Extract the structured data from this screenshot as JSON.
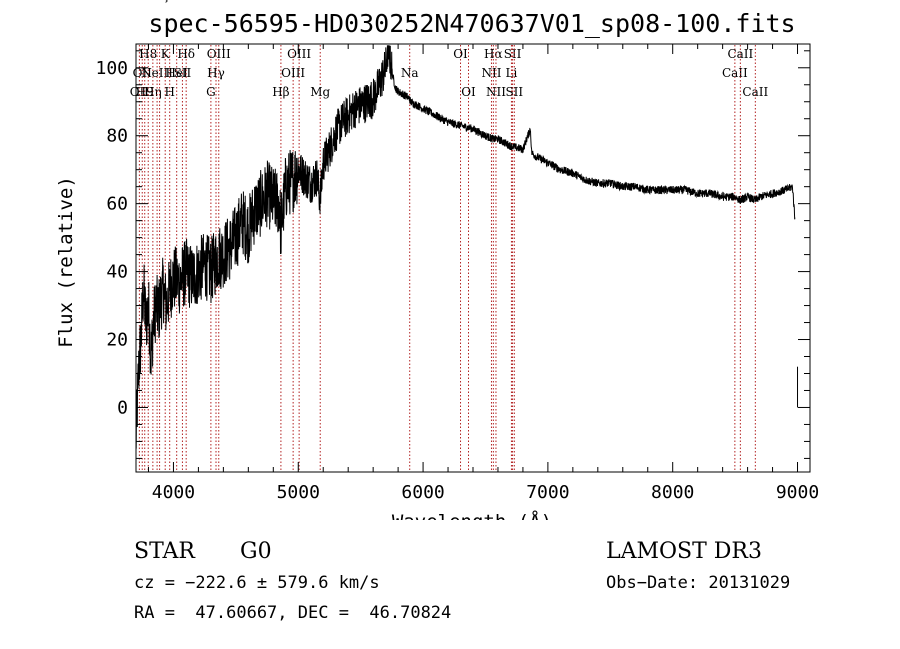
{
  "chart_data": {
    "type": "line",
    "title": "spec-56595-HD030252N470637V01_sp08-100.fits",
    "xlabel": "Wavelength (Å)",
    "ylabel": "Flux (relative)",
    "xlim": [
      3700,
      9100
    ],
    "ylim": [
      -19,
      107
    ],
    "x_ticks": [
      4000,
      5000,
      6000,
      7000,
      8000,
      9000
    ],
    "y_ticks": [
      0,
      20,
      40,
      60,
      80,
      100
    ],
    "series": [
      {
        "name": "spectrum",
        "x": [
          3700,
          3720,
          3740,
          3760,
          3780,
          3800,
          3820,
          3840,
          3860,
          3880,
          3900,
          3920,
          3940,
          3960,
          3980,
          4000,
          4050,
          4100,
          4150,
          4200,
          4250,
          4300,
          4350,
          4400,
          4450,
          4500,
          4550,
          4600,
          4650,
          4700,
          4750,
          4800,
          4850,
          4860,
          4870,
          4900,
          4950,
          5000,
          5050,
          5100,
          5150,
          5170,
          5180,
          5200,
          5250,
          5300,
          5350,
          5400,
          5450,
          5500,
          5550,
          5600,
          5650,
          5700,
          5720,
          5730,
          5740,
          5760,
          5780,
          5800,
          5850,
          5890,
          5900,
          5950,
          6000,
          6100,
          6200,
          6300,
          6400,
          6500,
          6563,
          6600,
          6700,
          6800,
          6860,
          6870,
          6900,
          7000,
          7100,
          7200,
          7300,
          7400,
          7500,
          7600,
          7700,
          7800,
          7900,
          8000,
          8100,
          8200,
          8300,
          8400,
          8500,
          8540,
          8600,
          8662,
          8700,
          8800,
          8900,
          8960,
          8980
        ],
        "y": [
          -10,
          10,
          20,
          35,
          25,
          30,
          15,
          25,
          30,
          28,
          32,
          35,
          30,
          33,
          36,
          38,
          37,
          40,
          38,
          40,
          42,
          40,
          44,
          45,
          47,
          50,
          55,
          52,
          58,
          60,
          63,
          61,
          60,
          52,
          56,
          65,
          67,
          70,
          68,
          66,
          68,
          62,
          63,
          72,
          76,
          81,
          84,
          86,
          88,
          89,
          90,
          91,
          95,
          100,
          106,
          104,
          102,
          97,
          94,
          93,
          92,
          91,
          90,
          89,
          88,
          86,
          84,
          83,
          82,
          80,
          79,
          79,
          77,
          76,
          82,
          75,
          74,
          72,
          70,
          69,
          67,
          66,
          66,
          65,
          65,
          64,
          64,
          64,
          64,
          63,
          63,
          62,
          62,
          61,
          62,
          61,
          62,
          63,
          64,
          65,
          55
        ]
      }
    ],
    "noise": [
      {
        "from": 3700,
        "to": 5000,
        "amp": 10
      },
      {
        "from": 5000,
        "to": 5750,
        "amp": 6
      },
      {
        "from": 5750,
        "to": 9000,
        "amp": 1.2
      }
    ],
    "end_stub": {
      "x": 9000,
      "y_top": 12,
      "y_bottom": 0
    },
    "lines": [
      {
        "wl": 3727,
        "labels": [
          "OII"
        ],
        "row": 3
      },
      {
        "wl": 3750,
        "labels": [
          "OII"
        ],
        "row": 2
      },
      {
        "wl": 3770,
        "labels": [
          "H9"
        ],
        "row": 3
      },
      {
        "wl": 3798,
        "labels": [
          "H8"
        ],
        "row": 1
      },
      {
        "wl": 3835,
        "labels": [
          "Hη"
        ],
        "row": 3
      },
      {
        "wl": 3869,
        "labels": [
          "NeIII"
        ],
        "row": 2
      },
      {
        "wl": 3889,
        "labels": [
          "Hζ"
        ],
        "row": 0
      },
      {
        "wl": 3934,
        "labels": [
          "K"
        ],
        "row": 1
      },
      {
        "wl": 3970,
        "labels": [
          "H"
        ],
        "row": 3
      },
      {
        "wl": 4026,
        "labels": [
          "HeI"
        ],
        "row": 2
      },
      {
        "wl": 4072,
        "labels": [
          "SII"
        ],
        "row": 2
      },
      {
        "wl": 4102,
        "labels": [
          "Hδ"
        ],
        "row": 1
      },
      {
        "wl": 4300,
        "labels": [
          "G"
        ],
        "row": 3
      },
      {
        "wl": 4341,
        "labels": [
          "Hγ"
        ],
        "row": 2
      },
      {
        "wl": 4363,
        "labels": [
          "OIII"
        ],
        "row": 1
      },
      {
        "wl": 4861,
        "labels": [
          "Hβ"
        ],
        "row": 3
      },
      {
        "wl": 4959,
        "labels": [
          "OIII"
        ],
        "row": 2
      },
      {
        "wl": 5007,
        "labels": [
          "OIII"
        ],
        "row": 1
      },
      {
        "wl": 5176,
        "labels": [
          "Mg"
        ],
        "row": 3
      },
      {
        "wl": 5893,
        "labels": [
          "Na"
        ],
        "row": 2
      },
      {
        "wl": 6300,
        "labels": [
          "OI"
        ],
        "row": 1
      },
      {
        "wl": 6364,
        "labels": [
          "OI"
        ],
        "row": 3
      },
      {
        "wl": 6548,
        "labels": [
          "NII"
        ],
        "row": 2
      },
      {
        "wl": 6563,
        "labels": [
          "Hα"
        ],
        "row": 1
      },
      {
        "wl": 6584,
        "labels": [
          "NII"
        ],
        "row": 3
      },
      {
        "wl": 6708,
        "labels": [
          "Li"
        ],
        "row": 2
      },
      {
        "wl": 6717,
        "labels": [
          "SII"
        ],
        "row": 1
      },
      {
        "wl": 6731,
        "labels": [
          "SII"
        ],
        "row": 3
      },
      {
        "wl": 8498,
        "labels": [
          "CaII"
        ],
        "row": 2
      },
      {
        "wl": 8542,
        "labels": [
          "CaII"
        ],
        "row": 1
      },
      {
        "wl": 8662,
        "labels": [
          "CaII"
        ],
        "row": 3
      }
    ],
    "colors": {
      "spectrum": "#000000",
      "line_marker": "#b22222"
    }
  },
  "info": {
    "object_type": "STAR",
    "subclass": "G0",
    "survey": "LAMOST DR3",
    "cz": "cz = −222.6 ± 579.6 km/s",
    "obs_date": "Obs−Date: 20131029",
    "radec": "RA =  47.60667, DEC =  46.70824"
  }
}
